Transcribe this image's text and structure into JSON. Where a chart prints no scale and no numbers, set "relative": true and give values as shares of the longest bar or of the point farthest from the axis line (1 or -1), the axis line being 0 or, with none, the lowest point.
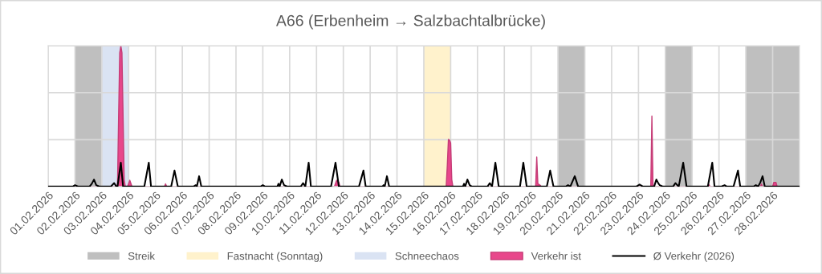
{
  "chart_data": {
    "type": "line",
    "title": "A66 (Erbenheim → Salzbachtalbrücke)",
    "relative": true,
    "grid": true,
    "legend": "bottom",
    "tick_labels": "x",
    "xlim": [
      "2026-02-01",
      "2026-03-01"
    ],
    "xticks": [
      {
        "value": "2026-02-01",
        "label": "01.02.2026"
      },
      {
        "value": "2026-02-02",
        "label": "02.02.2026"
      },
      {
        "value": "2026-02-03",
        "label": "03.02.2026"
      },
      {
        "value": "2026-02-04",
        "label": "04.02.2026"
      },
      {
        "value": "2026-02-05",
        "label": "05.02.2026"
      },
      {
        "value": "2026-02-06",
        "label": "06.02.2026"
      },
      {
        "value": "2026-02-07",
        "label": "07.02.2026"
      },
      {
        "value": "2026-02-08",
        "label": "08.02.2026"
      },
      {
        "value": "2026-02-09",
        "label": "09.02.2026"
      },
      {
        "value": "2026-02-10",
        "label": "10.02.2026"
      },
      {
        "value": "2026-02-11",
        "label": "11.02.2026"
      },
      {
        "value": "2026-02-12",
        "label": "12.02.2026"
      },
      {
        "value": "2026-02-13",
        "label": "13.02.2026"
      },
      {
        "value": "2026-02-14",
        "label": "14.02.2026"
      },
      {
        "value": "2026-02-15",
        "label": "15.02.2026"
      },
      {
        "value": "2026-02-16",
        "label": "16.02.2026"
      },
      {
        "value": "2026-02-17",
        "label": "17.02.2026"
      },
      {
        "value": "2026-02-18",
        "label": "18.02.2026"
      },
      {
        "value": "2026-02-19",
        "label": "19.02.2026"
      },
      {
        "value": "2026-02-20",
        "label": "20.02.2026"
      },
      {
        "value": "2026-02-21",
        "label": "21.02.2026"
      },
      {
        "value": "2026-02-22",
        "label": "22.02.2026"
      },
      {
        "value": "2026-02-23",
        "label": "23.02.2026"
      },
      {
        "value": "2026-02-24",
        "label": "24.02.2026"
      },
      {
        "value": "2026-02-25",
        "label": "25.02.2026"
      },
      {
        "value": "2026-02-26",
        "label": "26.02.2026"
      },
      {
        "value": "2026-02-27",
        "label": "27.02.2026"
      },
      {
        "value": "2026-02-28",
        "label": "28.02.2026"
      }
    ],
    "bands": [
      {
        "axis": "x",
        "from": "2026-02-02",
        "to": "2026-02-03",
        "label": "Streik",
        "color": "#bfbfbf"
      },
      {
        "axis": "x",
        "from": "2026-02-20",
        "to": "2026-02-21",
        "color": "#bfbfbf"
      },
      {
        "axis": "x",
        "from": "2026-02-24",
        "to": "2026-02-25",
        "color": "#bfbfbf"
      },
      {
        "axis": "x",
        "from": "2026-02-27",
        "to": "2026-03-01",
        "color": "#bfbfbf"
      },
      {
        "axis": "x",
        "from": "2026-02-15",
        "to": "2026-02-16",
        "label": "Fastnacht (Sonntag)",
        "color": "#fff2cc"
      },
      {
        "axis": "x",
        "from": "2026-02-03",
        "to": "2026-02-04",
        "label": "Schneechaos",
        "color": "#dae3f3"
      }
    ],
    "series": [
      {
        "name": "Verkehr ist",
        "type": "area",
        "color": "#e8478b",
        "x": [
          "2026-02-01T00:00",
          "2026-02-03T14:00",
          "2026-02-03T15:00",
          "2026-02-03T16:00",
          "2026-02-03T17:00",
          "2026-02-03T18:00",
          "2026-02-03T19:00",
          "2026-02-03T20:00",
          "2026-02-03T21:00",
          "2026-02-03T23:00",
          "2026-02-04T01:00",
          "2026-02-04T03:00",
          "2026-02-05T08:00",
          "2026-02-05T09:00",
          "2026-02-05T10:00",
          "2026-02-11T16:00",
          "2026-02-11T18:00",
          "2026-02-11T20:00",
          "2026-02-11T21:00",
          "2026-02-15T20:00",
          "2026-02-15T21:00",
          "2026-02-15T22:00",
          "2026-02-15T23:00",
          "2026-02-16T00:00",
          "2026-02-16T01:00",
          "2026-02-16T02:00",
          "2026-02-19T04:00",
          "2026-02-19T05:00",
          "2026-02-19T06:00",
          "2026-02-19T08:00",
          "2026-02-19T09:00",
          "2026-02-23T11:00",
          "2026-02-23T12:00",
          "2026-02-23T13:00",
          "2026-02-25T14:00",
          "2026-02-25T15:00",
          "2026-02-25T16:00",
          "2026-02-27T13:00",
          "2026-02-27T14:00",
          "2026-02-27T15:00",
          "2026-02-28T00:00",
          "2026-02-28T01:00",
          "2026-02-28T03:00",
          "2026-02-28T04:00",
          "2026-03-01T00:00"
        ],
        "values": [
          0,
          0,
          0.5,
          0.95,
          1,
          0.95,
          0.5,
          0.05,
          0,
          0,
          0.045,
          0,
          0,
          0.02,
          0,
          0,
          0.045,
          0.03,
          0,
          0,
          0.15,
          0.335,
          0.33,
          0.31,
          0.05,
          0,
          0,
          0.21,
          0.02,
          0.01,
          0,
          0,
          0.5,
          0,
          0,
          0.015,
          0,
          0,
          0.02,
          0,
          0,
          0.03,
          0.03,
          0,
          0
        ]
      },
      {
        "name": "Ø Verkehr (2026)",
        "color": "#000000",
        "x": [
          "2026-02-01T00:00",
          "2026-02-01T22:00",
          "2026-02-02T00:00",
          "2026-02-02T03:00",
          "2026-02-02T13:00",
          "2026-02-02T15:00",
          "2026-02-02T17:00",
          "2026-02-02T19:00",
          "2026-02-02T22:00",
          "2026-02-03T08:00",
          "2026-02-03T11:00",
          "2026-02-03T13:00",
          "2026-02-03T14:00",
          "2026-02-03T17:00",
          "2026-02-03T19:00",
          "2026-02-04T14:00",
          "2026-02-04T18:00",
          "2026-02-04T20:00",
          "2026-02-05T14:00",
          "2026-02-05T17:00",
          "2026-02-05T20:00",
          "2026-02-06T10:00",
          "2026-02-06T12:00",
          "2026-02-06T13:00",
          "2026-02-06T15:00",
          "2026-02-06T17:00",
          "2026-02-08T22:00",
          "2026-02-09T00:00",
          "2026-02-09T02:00",
          "2026-02-09T13:00",
          "2026-02-09T14:00",
          "2026-02-09T15:00",
          "2026-02-09T17:00",
          "2026-02-09T19:00",
          "2026-02-09T22:00",
          "2026-02-10T10:00",
          "2026-02-10T12:00",
          "2026-02-10T14:00",
          "2026-02-10T17:00",
          "2026-02-10T19:00",
          "2026-02-11T13:00",
          "2026-02-11T17:00",
          "2026-02-11T20:00",
          "2026-02-12T14:00",
          "2026-02-12T18:00",
          "2026-02-12T20:00",
          "2026-02-13T11:00",
          "2026-02-13T12:00",
          "2026-02-13T13:00",
          "2026-02-13T15:00",
          "2026-02-13T17:00",
          "2026-02-16T11:00",
          "2026-02-16T12:00",
          "2026-02-16T13:00",
          "2026-02-16T15:00",
          "2026-02-16T17:00",
          "2026-02-16T19:00",
          "2026-02-17T09:00",
          "2026-02-17T11:00",
          "2026-02-17T13:00",
          "2026-02-17T16:00",
          "2026-02-17T19:00",
          "2026-02-18T14:00",
          "2026-02-18T17:00",
          "2026-02-18T20:00",
          "2026-02-19T14:00",
          "2026-02-19T17:00",
          "2026-02-19T20:00",
          "2026-02-20T07:00",
          "2026-02-20T09:00",
          "2026-02-20T11:00",
          "2026-02-20T15:00",
          "2026-02-20T18:00",
          "2026-02-22T22:00",
          "2026-02-23T01:00",
          "2026-02-23T04:00",
          "2026-02-23T14:00",
          "2026-02-23T16:00",
          "2026-02-23T18:00",
          "2026-02-23T19:00",
          "2026-02-23T22:00",
          "2026-02-24T07:00",
          "2026-02-24T09:00",
          "2026-02-24T12:00",
          "2026-02-24T16:00",
          "2026-02-24T19:00",
          "2026-02-25T14:00",
          "2026-02-25T18:00",
          "2026-02-25T20:00",
          "2026-02-26T02:00",
          "2026-02-26T05:00",
          "2026-02-26T07:00",
          "2026-02-26T13:00",
          "2026-02-26T17:00",
          "2026-02-26T19:00",
          "2026-02-27T07:00",
          "2026-02-27T09:00",
          "2026-02-27T11:00",
          "2026-02-27T13:00",
          "2026-02-27T15:00",
          "2026-02-27T17:00",
          "2026-03-01T00:00"
        ],
        "values": [
          0,
          0,
          0.01,
          0,
          0,
          0.02,
          0.05,
          0.01,
          0,
          0,
          0.025,
          0,
          0,
          0.17,
          0,
          0,
          0.17,
          0,
          0,
          0.114,
          0,
          0,
          0.01,
          0,
          0.074,
          0,
          0,
          0.01,
          0,
          0,
          0.02,
          0,
          0.05,
          0.01,
          0,
          0,
          0.025,
          0,
          0.17,
          0,
          0,
          0.17,
          0,
          0,
          0.114,
          0,
          0,
          0.01,
          0,
          0.074,
          0,
          0,
          0.02,
          0,
          0.05,
          0.01,
          0,
          0,
          0.025,
          0,
          0.17,
          0,
          0,
          0.17,
          0,
          0,
          0.114,
          0,
          0,
          0.01,
          0,
          0.074,
          0,
          0,
          0.015,
          0,
          0,
          0.05,
          0.02,
          0.01,
          0,
          0,
          0.025,
          0,
          0.17,
          0,
          0,
          0.17,
          0,
          0,
          0.01,
          0,
          0,
          0.114,
          0,
          0,
          0.01,
          0,
          0.03,
          0.074,
          0,
          0
        ]
      }
    ]
  }
}
